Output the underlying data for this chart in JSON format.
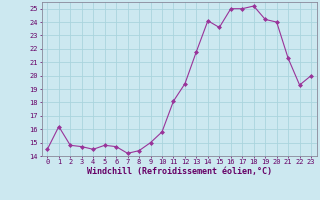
{
  "x": [
    0,
    1,
    2,
    3,
    4,
    5,
    6,
    7,
    8,
    9,
    10,
    11,
    12,
    13,
    14,
    15,
    16,
    17,
    18,
    19,
    20,
    21,
    22,
    23
  ],
  "y": [
    14.5,
    16.2,
    14.8,
    14.7,
    14.5,
    14.8,
    14.7,
    14.2,
    14.4,
    15.0,
    15.8,
    18.1,
    19.4,
    21.8,
    24.1,
    23.6,
    25.0,
    25.0,
    25.2,
    24.2,
    24.0,
    21.3,
    19.3,
    20.0
  ],
  "line_color": "#993399",
  "marker": "D",
  "markersize": 2,
  "linewidth": 0.8,
  "xlabel": "Windchill (Refroidissement éolien,°C)",
  "xlim": [
    -0.5,
    23.5
  ],
  "ylim": [
    14,
    25.5
  ],
  "yticks": [
    14,
    15,
    16,
    17,
    18,
    19,
    20,
    21,
    22,
    23,
    24,
    25
  ],
  "xticks": [
    0,
    1,
    2,
    3,
    4,
    5,
    6,
    7,
    8,
    9,
    10,
    11,
    12,
    13,
    14,
    15,
    16,
    17,
    18,
    19,
    20,
    21,
    22,
    23
  ],
  "bg_color": "#cce8f0",
  "grid_color": "#aad4dd",
  "tick_label_color": "#660066",
  "xlabel_color": "#660066",
  "tick_fontsize": 5.0,
  "xlabel_fontsize": 6.0,
  "spine_color": "#888899"
}
